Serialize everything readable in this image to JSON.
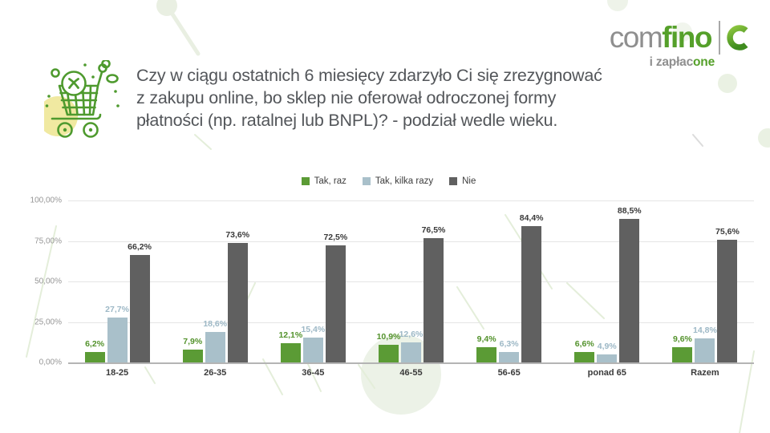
{
  "logo": {
    "name_gray": "com",
    "name_green": "fino",
    "tagline_gray": "i zapłac",
    "tagline_green": "one",
    "brand_green": "#55a02a",
    "brand_gray": "#8f8f8f"
  },
  "title": {
    "line1": "Czy w ciągu ostatnich 6 miesięcy zdarzyło Ci się zrezygnować",
    "line2": "z zakupu online, bo sklep nie oferował odroczonej formy",
    "line3": "płatności (np. ratalnej lub BNPL)? - podział wedle wieku."
  },
  "chart_data": {
    "type": "bar",
    "title": "Czy w ciągu ostatnich 6 miesięcy zdarzyło Ci się zrezygnować z zakupu online, bo sklep nie oferował odroczonej formy płatności (np. ratalnej lub BNPL)? - podział wedle wieku.",
    "categories": [
      "18-25",
      "26-35",
      "36-45",
      "46-55",
      "56-65",
      "ponad 65",
      "Razem"
    ],
    "series": [
      {
        "name": "Tak, raz",
        "color": "#5b9b35",
        "label_color": "#53922c",
        "values": [
          6.2,
          7.9,
          12.1,
          10.9,
          9.4,
          6.6,
          9.6
        ],
        "labels": [
          "6,2%",
          "7,9%",
          "12,1%",
          "10,9%",
          "9,4%",
          "6,6%",
          "9,6%"
        ]
      },
      {
        "name": "Tak, kilka razy",
        "color": "#a9c0ca",
        "label_color": "#9db8c6",
        "values": [
          27.7,
          18.6,
          15.4,
          12.6,
          6.3,
          4.9,
          14.8
        ],
        "labels": [
          "27,7%",
          "18,6%",
          "15,4%",
          "12,6%",
          "6,3%",
          "4,9%",
          "14,8%"
        ]
      },
      {
        "name": "Nie",
        "color": "#606060",
        "label_color": "#3a3a3a",
        "values": [
          66.2,
          73.6,
          72.5,
          76.5,
          84.4,
          88.5,
          75.6
        ],
        "labels": [
          "66,2%",
          "73,6%",
          "72,5%",
          "76,5%",
          "84,4%",
          "88,5%",
          "75,6%"
        ]
      }
    ],
    "y_ticks": [
      "100,00%",
      "75,00%",
      "50,00%",
      "25,00%",
      "0,00%"
    ],
    "ylim": [
      0,
      100
    ],
    "grid": true,
    "legend_position": "top-center"
  }
}
